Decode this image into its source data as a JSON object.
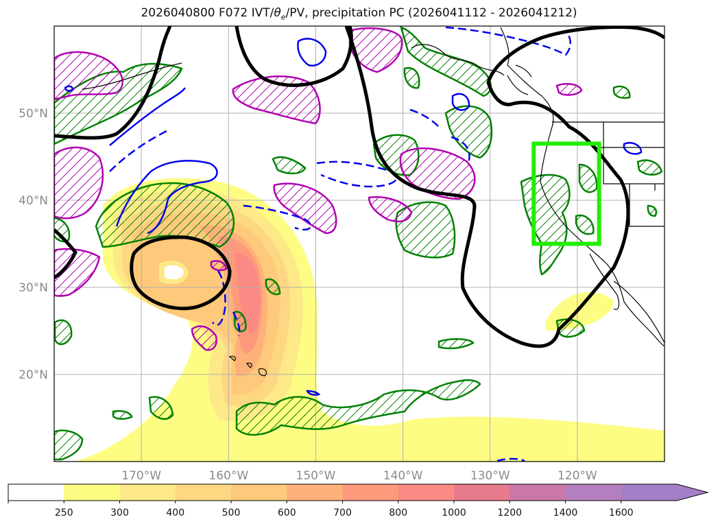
{
  "title": {
    "prefix": "2026040800 F072 IVT/",
    "theta": "θ",
    "theta_sub": "e",
    "suffix": "/PV, precipitation PC (2026041112 - 2026041212)"
  },
  "map": {
    "projection": "PlateCarree",
    "lon_range": [
      -180,
      -110
    ],
    "lat_range": [
      10,
      60
    ],
    "grid": true,
    "lon_ticks": [
      {
        "lon": -170,
        "label": "170°W"
      },
      {
        "lon": -160,
        "label": "160°W"
      },
      {
        "lon": -150,
        "label": "150°W"
      },
      {
        "lon": -140,
        "label": "140°W"
      },
      {
        "lon": -130,
        "label": "130°W"
      },
      {
        "lon": -120,
        "label": "120°W"
      }
    ],
    "lat_ticks": [
      {
        "lat": 50,
        "label": "50°N"
      },
      {
        "lat": 40,
        "label": "40°N"
      },
      {
        "lat": 30,
        "label": "30°N"
      },
      {
        "lat": 20,
        "label": "20°N"
      }
    ],
    "highlight_box": {
      "lon": [
        -125,
        -117.5
      ],
      "lat": [
        35,
        46.5
      ],
      "color": "#22ee00"
    }
  },
  "colorbar": {
    "levels": [
      "250",
      "300",
      "400",
      "500",
      "600",
      "700",
      "800",
      "1000",
      "1200",
      "1400",
      "1600"
    ],
    "colors": [
      "#ffffff",
      "#fdfd84",
      "#fde988",
      "#fed783",
      "#fec97a",
      "#feb27a",
      "#fe9a7c",
      "#fc8a84",
      "#e77a8b",
      "#c978a8",
      "#b47fbf",
      "#a57ec8"
    ],
    "extend": "max"
  },
  "ivt_field": {
    "levels": [
      250,
      300,
      400,
      500,
      600,
      700,
      800,
      1000
    ],
    "colors": [
      "#fdfd84",
      "#fde988",
      "#fed783",
      "#fec97a",
      "#feb27a",
      "#fe9a7c",
      "#fc8a84",
      "#e77a8b"
    ]
  },
  "colors": {
    "theta_e": "#000000",
    "pv_solid": "#0000ee",
    "pv_dashed": "#0000ee",
    "precip_pos": "#008000",
    "precip_neg": "#b000b0",
    "coast": "#000000"
  }
}
